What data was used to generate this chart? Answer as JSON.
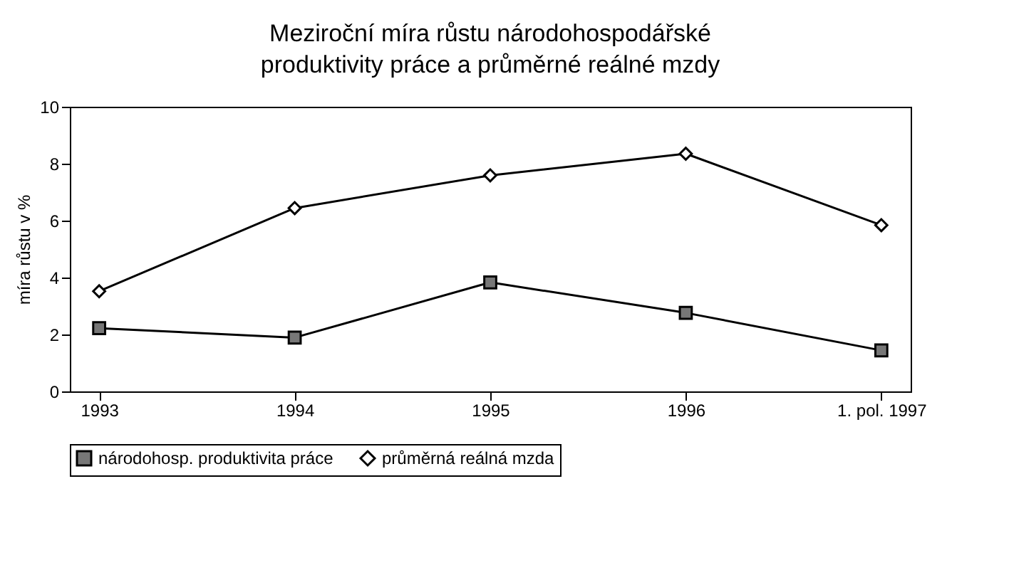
{
  "chart_data": {
    "type": "line",
    "title": "Meziroční míra růstu národohospodářské\nproduktivity práce a průměrné reálné mzdy",
    "ylabel": "míra růstu v %",
    "categories": [
      "1993",
      "1994",
      "1995",
      "1996",
      "1. pol. 1997"
    ],
    "series": [
      {
        "name": "národohosp. produktivita práce",
        "color": "#000000",
        "marker": "square",
        "values": [
          2.22,
          1.89,
          3.83,
          2.76,
          1.44
        ]
      },
      {
        "name": "průměrná reálná mzda",
        "color": "#000000",
        "marker": "diamond",
        "values": [
          3.52,
          6.44,
          7.59,
          8.35,
          5.84
        ]
      }
    ],
    "ylim": [
      0,
      10
    ],
    "yticks": [
      0,
      2,
      4,
      6,
      8,
      10
    ],
    "grid": false,
    "legend": "bottom",
    "line_style": "solid"
  }
}
